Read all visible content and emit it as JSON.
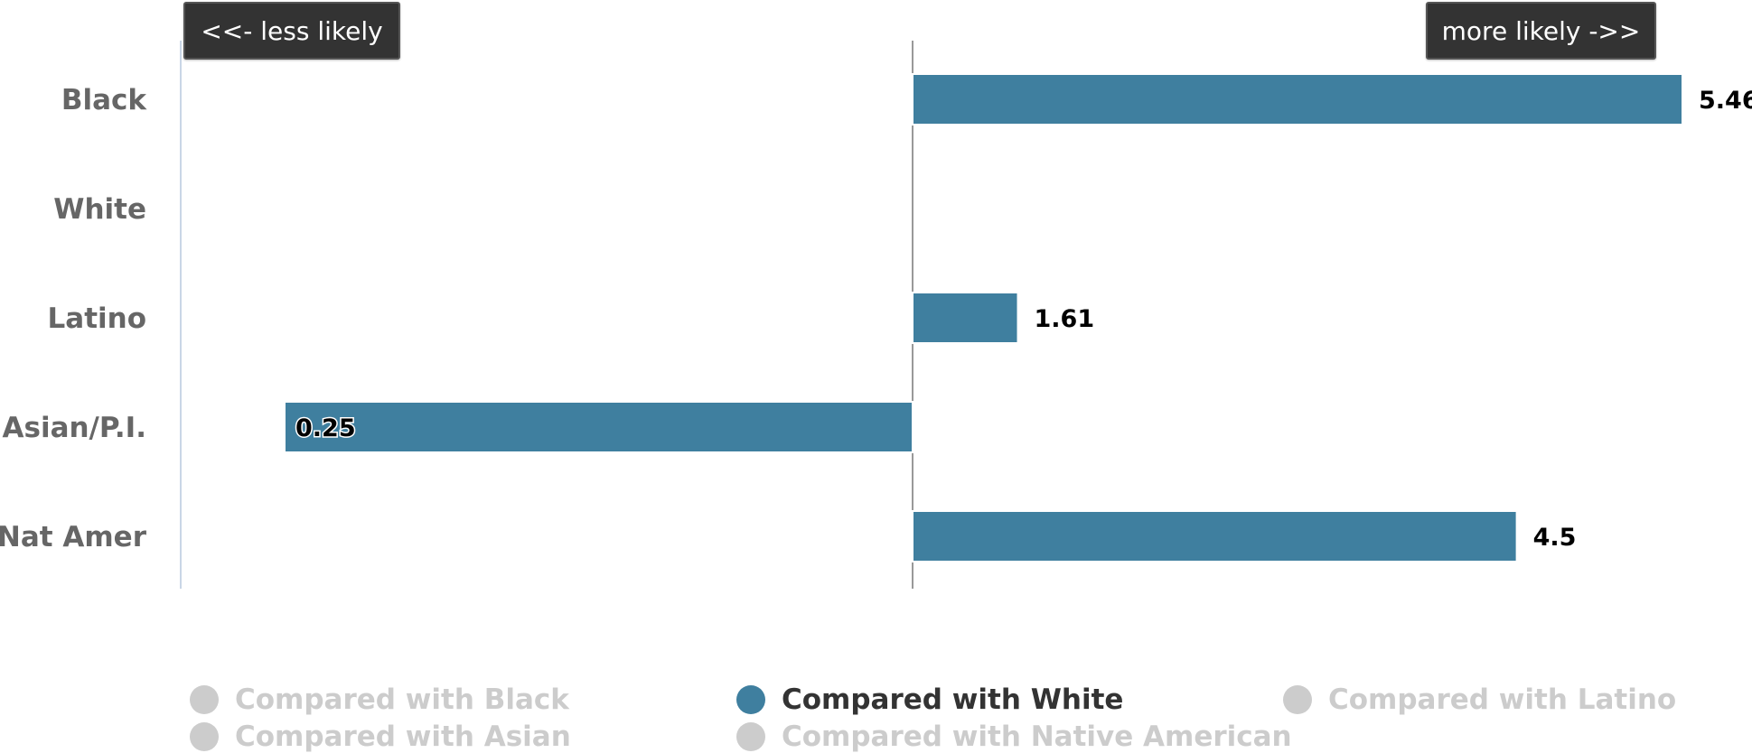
{
  "chart_data": {
    "type": "bar",
    "orientation": "horizontal",
    "categories": [
      "Black",
      "White",
      "Latino",
      "Asian/P.I.",
      "Nat Amer"
    ],
    "series": [
      {
        "name": "Compared with White",
        "values": [
          5.46,
          null,
          1.61,
          0.25,
          4.5
        ]
      }
    ],
    "baseline": 1,
    "data_labels": [
      "5.46",
      "",
      "1.61",
      "0.25",
      "4.5"
    ],
    "title": "",
    "xlabel": "",
    "ylabel": "",
    "grid": false,
    "legend_position": "bottom"
  },
  "direction_labels": {
    "less": "<<- less likely",
    "more": "more likely ->>"
  },
  "legend": {
    "items": [
      {
        "label": "Compared with Black",
        "active": false
      },
      {
        "label": "Compared with White",
        "active": true
      },
      {
        "label": "Compared with Latino",
        "active": false
      },
      {
        "label": "Compared with Asian",
        "active": false
      },
      {
        "label": "Compared with Native American",
        "active": false
      }
    ]
  },
  "colors": {
    "bar": "#3f7f9f",
    "legend_inactive": "#cccccc",
    "legend_active_text": "#333333",
    "axis": "#c9d6e6",
    "center_line": "#999999"
  }
}
